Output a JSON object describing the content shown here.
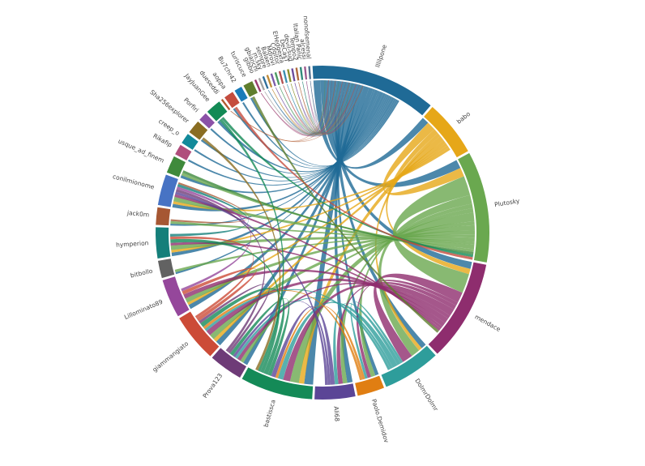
{
  "chart_data": {
    "type": "chord",
    "title": "",
    "groups": [
      {
        "name": "lllilpone",
        "value": 130,
        "color": "#1f6a96"
      },
      {
        "name": "babo",
        "value": 58,
        "color": "#e6a718"
      },
      {
        "name": "Plutosky",
        "value": 115,
        "color": "#6aa84f"
      },
      {
        "name": "mendace",
        "value": 105,
        "color": "#8e2d6e"
      },
      {
        "name": "DolmrDolmr",
        "value": 60,
        "color": "#2e9d9b"
      },
      {
        "name": "Paolo.Demidov",
        "value": 28,
        "color": "#e07e12"
      },
      {
        "name": "Ali68",
        "value": 42,
        "color": "#5b4596"
      },
      {
        "name": "bastissca",
        "value": 75,
        "color": "#148a57"
      },
      {
        "name": "Prova123",
        "value": 35,
        "color": "#6e3b77"
      },
      {
        "name": "giammangiato",
        "value": 50,
        "color": "#cc4b37"
      },
      {
        "name": "Lillominato89",
        "value": 40,
        "color": "#95479b"
      },
      {
        "name": "bitbollo",
        "value": 18,
        "color": "#626262"
      },
      {
        "name": "hymperion",
        "value": 32,
        "color": "#157f7a"
      },
      {
        "name": "jack0m",
        "value": 18,
        "color": "#a65733"
      },
      {
        "name": "conilmionome",
        "value": 32,
        "color": "#4773c4"
      },
      {
        "name": "usque_ad_finem",
        "value": 18,
        "color": "#3f8a3c"
      },
      {
        "name": "Rikafip",
        "value": 11,
        "color": "#b04e7c"
      },
      {
        "name": "creep_o",
        "value": 11,
        "color": "#128a9a"
      },
      {
        "name": "Sha256explorer",
        "value": 14,
        "color": "#8a6d22"
      },
      {
        "name": "Porfiri",
        "value": 9,
        "color": "#8b52a7"
      },
      {
        "name": "JayJuanGee",
        "value": 16,
        "color": "#138a55"
      },
      {
        "name": "dueseddi",
        "value": 2,
        "color": "#b05a2e"
      },
      {
        "name": "aoppa",
        "value": 10,
        "color": "#c44c3e"
      },
      {
        "name": "Bu7chr42",
        "value": 8,
        "color": "#1a7bb8"
      },
      {
        "name": "turiscuce",
        "value": 10,
        "color": "#5f7e2e"
      },
      {
        "name": "gibbo",
        "value": 2,
        "color": "#9a3b6e"
      },
      {
        "name": "gbianchi",
        "value": 2,
        "color": "#a3a3a3"
      },
      {
        "name": "m.sky",
        "value": 2,
        "color": "#2e6e9a"
      },
      {
        "name": "sempre",
        "value": 2,
        "color": "#bf8a36"
      },
      {
        "name": "Balaen",
        "value": 2,
        "color": "#7a5aa8"
      },
      {
        "name": "Morovi",
        "value": 2,
        "color": "#4d9a63"
      },
      {
        "name": "Cogitor",
        "value": 2,
        "color": "#b24f4f"
      },
      {
        "name": "EHedgexfa",
        "value": 2,
        "color": "#3a8fb0"
      },
      {
        "name": "DeCasT",
        "value": 2,
        "color": "#8a8f2a"
      },
      {
        "name": "devil-sud",
        "value": 2,
        "color": "#6b4c9e"
      },
      {
        "name": "Tempo2",
        "value": 2,
        "color": "#b06a3c"
      },
      {
        "name": "Italian Panic",
        "value": 2,
        "color": "#2f8a7a"
      },
      {
        "name": "alcessi",
        "value": 2,
        "color": "#9c5a8e"
      },
      {
        "name": "nonofsemenal",
        "value": 2,
        "color": "#52708f"
      }
    ],
    "links": [
      {
        "source": "lllilpone",
        "target": "babo",
        "value": 8
      },
      {
        "source": "lllilpone",
        "target": "Plutosky",
        "value": 10
      },
      {
        "source": "lllilpone",
        "target": "mendace",
        "value": 8
      },
      {
        "source": "lllilpone",
        "target": "DolmrDolmr",
        "value": 6
      },
      {
        "source": "lllilpone",
        "target": "Paolo.Demidov",
        "value": 4
      },
      {
        "source": "lllilpone",
        "target": "Ali68",
        "value": 6
      },
      {
        "source": "lllilpone",
        "target": "bastissca",
        "value": 10
      },
      {
        "source": "lllilpone",
        "target": "Prova123",
        "value": 5
      },
      {
        "source": "lllilpone",
        "target": "giammangiato",
        "value": 6
      },
      {
        "source": "lllilpone",
        "target": "Lillominato89",
        "value": 5
      },
      {
        "source": "lllilpone",
        "target": "bitbollo",
        "value": 2
      },
      {
        "source": "lllilpone",
        "target": "hymperion",
        "value": 4
      },
      {
        "source": "lllilpone",
        "target": "jack0m",
        "value": 2
      },
      {
        "source": "lllilpone",
        "target": "conilmionome",
        "value": 4
      },
      {
        "source": "lllilpone",
        "target": "usque_ad_finem",
        "value": 3
      },
      {
        "source": "lllilpone",
        "target": "Rikafip",
        "value": 2
      },
      {
        "source": "lllilpone",
        "target": "creep_o",
        "value": 2
      },
      {
        "source": "lllilpone",
        "target": "Sha256explorer",
        "value": 2
      },
      {
        "source": "lllilpone",
        "target": "Porfiri",
        "value": 2
      },
      {
        "source": "lllilpone",
        "target": "JayJuanGee",
        "value": 3
      },
      {
        "source": "lllilpone",
        "target": "aoppa",
        "value": 2
      },
      {
        "source": "lllilpone",
        "target": "Bu7chr42",
        "value": 2
      },
      {
        "source": "lllilpone",
        "target": "turiscuce",
        "value": 2
      },
      {
        "source": "babo",
        "target": "Plutosky",
        "value": 10
      },
      {
        "source": "babo",
        "target": "mendace",
        "value": 6
      },
      {
        "source": "babo",
        "target": "DolmrDolmr",
        "value": 4
      },
      {
        "source": "babo",
        "target": "bastissca",
        "value": 6
      },
      {
        "source": "babo",
        "target": "giammangiato",
        "value": 4
      },
      {
        "source": "babo",
        "target": "Lillominato89",
        "value": 3
      },
      {
        "source": "babo",
        "target": "hymperion",
        "value": 3
      },
      {
        "source": "babo",
        "target": "conilmionome",
        "value": 3
      },
      {
        "source": "Plutosky",
        "target": "mendace",
        "value": 22
      },
      {
        "source": "Plutosky",
        "target": "DolmrDolmr",
        "value": 10
      },
      {
        "source": "Plutosky",
        "target": "Paolo.Demidov",
        "value": 5
      },
      {
        "source": "Plutosky",
        "target": "Ali68",
        "value": 5
      },
      {
        "source": "Plutosky",
        "target": "bastissca",
        "value": 10
      },
      {
        "source": "Plutosky",
        "target": "Prova123",
        "value": 4
      },
      {
        "source": "Plutosky",
        "target": "giammangiato",
        "value": 6
      },
      {
        "source": "Plutosky",
        "target": "Lillominato89",
        "value": 5
      },
      {
        "source": "Plutosky",
        "target": "bitbollo",
        "value": 3
      },
      {
        "source": "Plutosky",
        "target": "hymperion",
        "value": 5
      },
      {
        "source": "Plutosky",
        "target": "jack0m",
        "value": 3
      },
      {
        "source": "Plutosky",
        "target": "conilmionome",
        "value": 5
      },
      {
        "source": "Plutosky",
        "target": "usque_ad_finem",
        "value": 3
      },
      {
        "source": "mendace",
        "target": "DolmrDolmr",
        "value": 12
      },
      {
        "source": "mendace",
        "target": "Paolo.Demidov",
        "value": 4
      },
      {
        "source": "mendace",
        "target": "Ali68",
        "value": 5
      },
      {
        "source": "mendace",
        "target": "bastissca",
        "value": 8
      },
      {
        "source": "mendace",
        "target": "Prova123",
        "value": 4
      },
      {
        "source": "mendace",
        "target": "giammangiato",
        "value": 6
      },
      {
        "source": "mendace",
        "target": "Lillominato89",
        "value": 5
      },
      {
        "source": "mendace",
        "target": "hymperion",
        "value": 3
      },
      {
        "source": "mendace",
        "target": "conilmionome",
        "value": 3
      },
      {
        "source": "DolmrDolmr",
        "target": "Paolo.Demidov",
        "value": 3
      },
      {
        "source": "DolmrDolmr",
        "target": "Ali68",
        "value": 4
      },
      {
        "source": "DolmrDolmr",
        "target": "bastissca",
        "value": 6
      },
      {
        "source": "DolmrDolmr",
        "target": "Prova123",
        "value": 3
      },
      {
        "source": "DolmrDolmr",
        "target": "giammangiato",
        "value": 3
      },
      {
        "source": "Paolo.Demidov",
        "target": "bastissca",
        "value": 3
      },
      {
        "source": "Paolo.Demidov",
        "target": "giammangiato",
        "value": 3
      },
      {
        "source": "Ali68",
        "target": "bastissca",
        "value": 5
      },
      {
        "source": "Ali68",
        "target": "Prova123",
        "value": 3
      },
      {
        "source": "Ali68",
        "target": "conilmionome",
        "value": 3
      },
      {
        "source": "bastissca",
        "target": "Prova123",
        "value": 4
      },
      {
        "source": "bastissca",
        "target": "giammangiato",
        "value": 5
      },
      {
        "source": "bastissca",
        "target": "hymperion",
        "value": 4
      },
      {
        "source": "bastissca",
        "target": "JayJuanGee",
        "value": 3
      },
      {
        "source": "Prova123",
        "target": "giammangiato",
        "value": 3
      },
      {
        "source": "Prova123",
        "target": "conilmionome",
        "value": 3
      },
      {
        "source": "giammangiato",
        "target": "Lillominato89",
        "value": 4
      },
      {
        "source": "giammangiato",
        "target": "hymperion",
        "value": 3
      },
      {
        "source": "Lillominato89",
        "target": "conilmionome",
        "value": 3
      },
      {
        "source": "hymperion",
        "target": "conilmionome",
        "value": 3
      },
      {
        "source": "jack0m",
        "target": "conilmionome",
        "value": 2
      },
      {
        "source": "usque_ad_finem",
        "target": "Plutosky",
        "value": 3
      },
      {
        "source": "Sha256explorer",
        "target": "bastissca",
        "value": 3
      },
      {
        "source": "JayJuanGee",
        "target": "Plutosky",
        "value": 3
      },
      {
        "source": "turiscuce",
        "target": "mendace",
        "value": 3
      },
      {
        "source": "aoppa",
        "target": "Plutosky",
        "value": 3
      }
    ]
  }
}
